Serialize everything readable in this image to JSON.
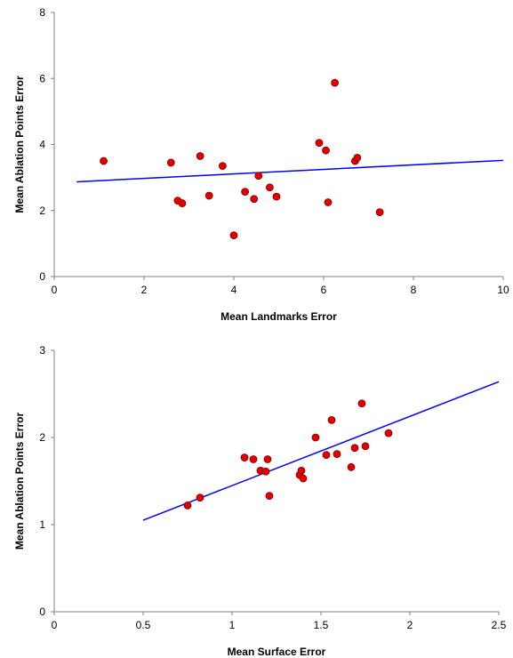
{
  "chart_data": [
    {
      "type": "scatter",
      "xlabel": "Mean Landmarks Error",
      "ylabel": "Mean Ablation Points Error",
      "xlim": [
        0,
        10
      ],
      "ylim": [
        0,
        8
      ],
      "x_ticks": [
        "0",
        "2",
        "4",
        "6",
        "8",
        "10"
      ],
      "y_ticks": [
        "0",
        "2",
        "4",
        "6",
        "8"
      ],
      "marker_color": "#e00000",
      "trendline_color": "#0000ff",
      "grid": false,
      "points": [
        {
          "x": 1.1,
          "y": 3.5
        },
        {
          "x": 2.6,
          "y": 3.45
        },
        {
          "x": 2.75,
          "y": 2.3
        },
        {
          "x": 2.85,
          "y": 2.22
        },
        {
          "x": 3.25,
          "y": 3.65
        },
        {
          "x": 3.45,
          "y": 2.45
        },
        {
          "x": 3.75,
          "y": 3.35
        },
        {
          "x": 4.0,
          "y": 1.25
        },
        {
          "x": 4.25,
          "y": 2.57
        },
        {
          "x": 4.45,
          "y": 2.35
        },
        {
          "x": 4.55,
          "y": 3.05
        },
        {
          "x": 4.8,
          "y": 2.7
        },
        {
          "x": 4.95,
          "y": 2.42
        },
        {
          "x": 5.9,
          "y": 4.05
        },
        {
          "x": 6.05,
          "y": 3.82
        },
        {
          "x": 6.1,
          "y": 2.25
        },
        {
          "x": 6.25,
          "y": 5.87
        },
        {
          "x": 6.7,
          "y": 3.5
        },
        {
          "x": 6.75,
          "y": 3.6
        },
        {
          "x": 7.25,
          "y": 1.95
        }
      ],
      "trendline": {
        "x": [
          0.5,
          10
        ],
        "y": [
          2.87,
          3.52
        ]
      }
    },
    {
      "type": "scatter",
      "xlabel": "Mean Surface Error",
      "ylabel": "Mean Ablation Points Error",
      "xlim": [
        0,
        2.5
      ],
      "ylim": [
        0,
        3
      ],
      "x_ticks": [
        "0",
        "0.5",
        "1",
        "1.5",
        "2",
        "2.5"
      ],
      "y_ticks": [
        "0",
        "1",
        "2",
        "3"
      ],
      "marker_color": "#e00000",
      "trendline_color": "#0000ff",
      "grid": false,
      "points": [
        {
          "x": 0.75,
          "y": 1.22
        },
        {
          "x": 0.82,
          "y": 1.31
        },
        {
          "x": 1.07,
          "y": 1.77
        },
        {
          "x": 1.12,
          "y": 1.75
        },
        {
          "x": 1.16,
          "y": 1.62
        },
        {
          "x": 1.19,
          "y": 1.61
        },
        {
          "x": 1.2,
          "y": 1.75
        },
        {
          "x": 1.21,
          "y": 1.33
        },
        {
          "x": 1.38,
          "y": 1.57
        },
        {
          "x": 1.39,
          "y": 1.62
        },
        {
          "x": 1.4,
          "y": 1.53
        },
        {
          "x": 1.47,
          "y": 2.0
        },
        {
          "x": 1.53,
          "y": 1.8
        },
        {
          "x": 1.56,
          "y": 2.2
        },
        {
          "x": 1.59,
          "y": 1.81
        },
        {
          "x": 1.67,
          "y": 1.66
        },
        {
          "x": 1.69,
          "y": 1.88
        },
        {
          "x": 1.73,
          "y": 2.39
        },
        {
          "x": 1.75,
          "y": 1.9
        },
        {
          "x": 1.88,
          "y": 2.05
        }
      ],
      "trendline": {
        "x": [
          0.5,
          2.5
        ],
        "y": [
          1.05,
          2.64
        ]
      }
    }
  ]
}
